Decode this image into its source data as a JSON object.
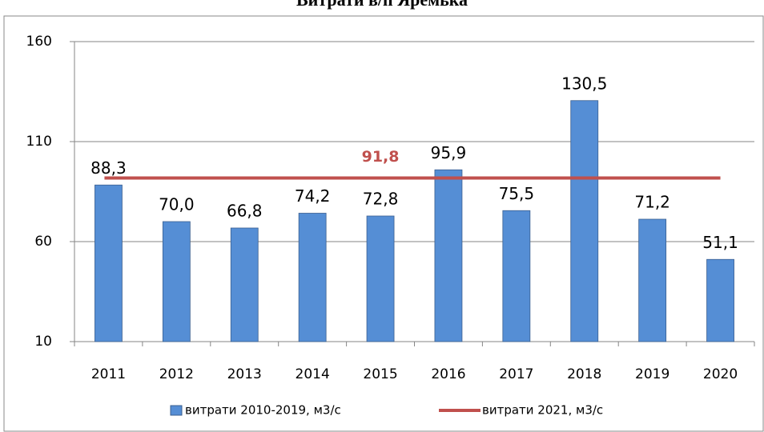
{
  "chart_data": {
    "type": "bar",
    "title": "Витрати в/п Яремька",
    "categories": [
      "2011",
      "2012",
      "2013",
      "2014",
      "2015",
      "2016",
      "2017",
      "2018",
      "2019",
      "2020"
    ],
    "series": [
      {
        "name": "витрати 2010-2019, м3/с",
        "type": "bar",
        "color": "#558ed5",
        "values": [
          88.3,
          70.0,
          66.8,
          74.2,
          72.8,
          95.9,
          75.5,
          130.5,
          71.2,
          51.1
        ],
        "value_labels": [
          "88,3",
          "70,0",
          "66,8",
          "74,2",
          "72,8",
          "95,9",
          "75,5",
          "130,5",
          "71,2",
          "51,1"
        ]
      },
      {
        "name": "витрати 2021, м3/с",
        "type": "line",
        "color": "#c0504d",
        "values": [
          91.8,
          91.8,
          91.8,
          91.8,
          91.8,
          91.8,
          91.8,
          91.8,
          91.8,
          91.8
        ],
        "value_labels": [
          null,
          null,
          null,
          null,
          "91,8",
          null,
          null,
          null,
          null,
          null
        ]
      }
    ],
    "ylim": [
      10,
      160
    ],
    "yticks": [
      10,
      60,
      110,
      160
    ],
    "grid": true,
    "legend": "bottom"
  }
}
